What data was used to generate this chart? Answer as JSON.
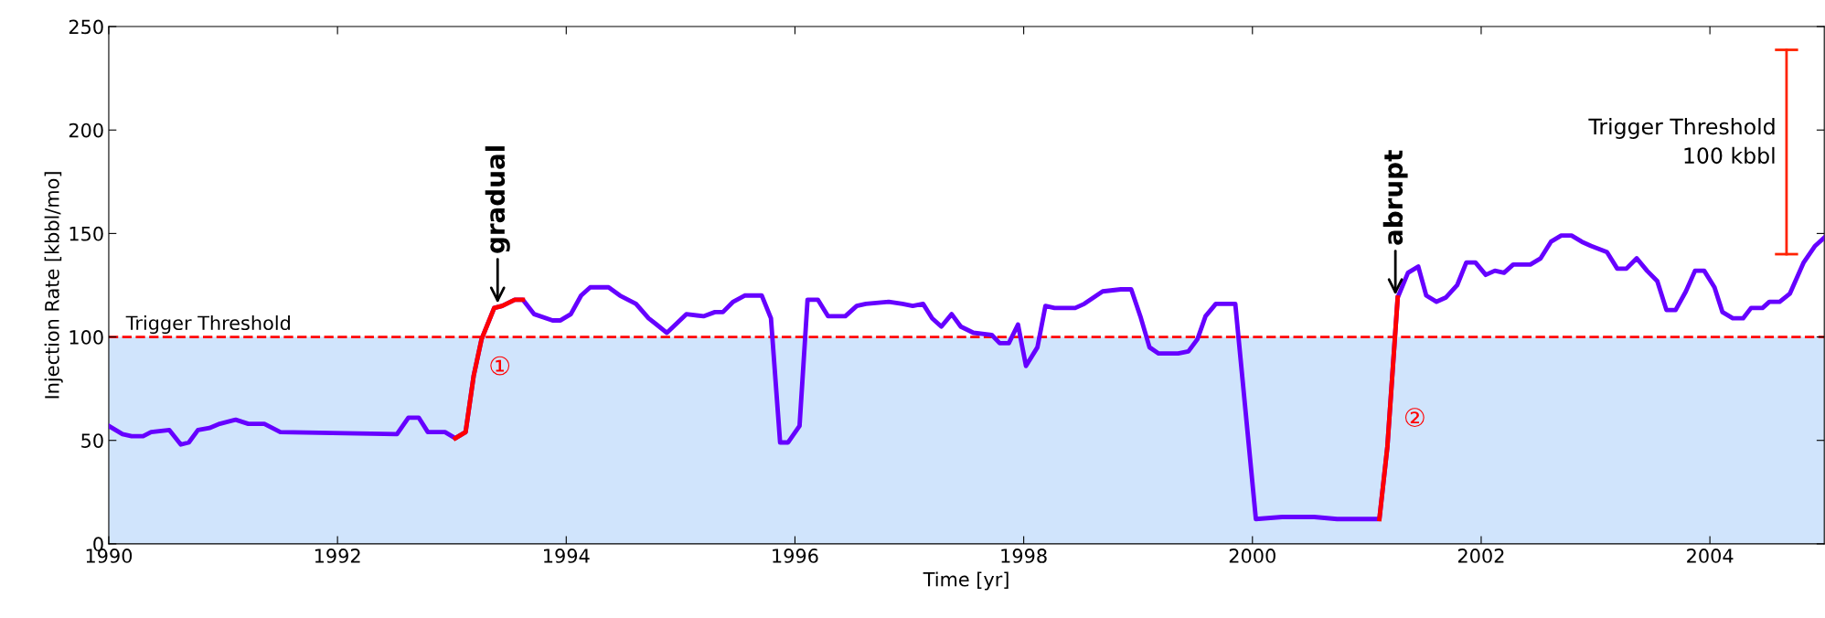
{
  "chart_data": {
    "type": "line",
    "xlabel": "Time [yr]",
    "ylabel": "Injection Rate [kbbl/mo]",
    "xlim": [
      1990,
      2005
    ],
    "ylim": [
      0,
      250
    ],
    "xticks": [
      1990,
      1992,
      1994,
      1996,
      1998,
      2000,
      2002,
      2004
    ],
    "yticks": [
      0,
      50,
      100,
      150,
      200,
      250
    ],
    "grid": false,
    "line_style": "solid",
    "marker": "none",
    "series": [
      {
        "color": "#6600ff",
        "x": [
          1990.0,
          1990.12,
          1990.2,
          1990.3,
          1990.37,
          1990.53,
          1990.63,
          1990.7,
          1990.78,
          1990.88,
          1990.97,
          1991.11,
          1991.22,
          1991.36,
          1991.5,
          1992.52,
          1992.62,
          1992.71,
          1992.79,
          1992.94,
          1993.03,
          1993.12,
          1993.19,
          1993.26,
          1993.37,
          1993.44,
          1993.55,
          1993.62,
          1993.72,
          1993.88,
          1993.95,
          1994.04,
          1994.13,
          1994.21,
          1994.37,
          1994.47,
          1994.61,
          1994.72,
          1994.79,
          1994.88,
          1995.05,
          1995.2,
          1995.3,
          1995.37,
          1995.46,
          1995.56,
          1995.71,
          1995.79,
          1995.87,
          1995.94,
          1996.04,
          1996.11,
          1996.2,
          1996.29,
          1996.44,
          1996.54,
          1996.62,
          1996.82,
          1996.94,
          1997.03,
          1997.12,
          1997.2,
          1997.28,
          1997.37,
          1997.45,
          1997.56,
          1997.72,
          1997.79,
          1997.87,
          1997.95,
          1998.02,
          1998.12,
          1998.19,
          1998.27,
          1998.45,
          1998.53,
          1998.69,
          1998.85,
          1998.94,
          1999.02,
          1999.1,
          1999.18,
          1999.35,
          1999.44,
          1999.52,
          1999.59,
          1999.68,
          1999.85,
          2000.03,
          2000.26,
          2000.54,
          2000.74,
          2001.11,
          2001.18,
          2001.27,
          2001.36,
          2001.45,
          2001.52,
          2001.61,
          2001.69,
          2001.79,
          2001.87,
          2001.95,
          2002.04,
          2002.12,
          2002.2,
          2002.28,
          2002.43,
          2002.52,
          2002.61,
          2002.7,
          2002.79,
          2002.88,
          2002.96,
          2003.1,
          2003.19,
          2003.27,
          2003.36,
          2003.45,
          2003.54,
          2003.62,
          2003.7,
          2003.79,
          2003.87,
          2003.95,
          2004.04,
          2004.11,
          2004.2,
          2004.29,
          2004.36,
          2004.46,
          2004.52,
          2004.61,
          2004.7,
          2004.82,
          2004.92,
          2005.0
        ],
        "values": [
          57,
          53,
          52,
          52,
          54,
          55,
          48,
          49,
          55,
          56,
          58,
          60,
          58,
          58,
          54,
          53,
          61,
          61,
          54,
          54,
          51,
          54,
          81,
          99,
          114,
          115,
          118,
          118,
          111,
          108,
          108,
          111,
          120,
          124,
          124,
          120,
          116,
          109,
          106,
          102,
          111,
          110,
          112,
          112,
          117,
          120,
          120,
          109,
          49,
          49,
          57,
          118,
          118,
          110,
          110,
          115,
          116,
          117,
          116,
          115,
          116,
          109,
          105,
          111,
          105,
          102,
          101,
          97,
          97,
          106,
          86,
          95,
          115,
          114,
          114,
          116,
          122,
          123,
          123,
          110,
          95,
          92,
          92,
          93,
          99,
          110,
          116,
          116,
          12,
          13,
          13,
          12,
          12,
          47,
          119,
          131,
          134,
          120,
          117,
          119,
          125,
          136,
          136,
          130,
          132,
          131,
          135,
          135,
          138,
          146,
          149,
          149,
          146,
          144,
          141,
          133,
          133,
          138,
          132,
          127,
          113,
          113,
          122,
          132,
          132,
          124,
          112,
          109,
          109,
          114,
          114,
          117,
          117,
          121,
          136,
          144,
          148
        ]
      },
      {
        "color": "#ff0000",
        "x": [
          1993.03,
          1993.12,
          1993.19,
          1993.26,
          1993.37,
          1993.44,
          1993.55,
          1993.62
        ],
        "values": [
          51,
          54,
          81,
          99,
          114,
          115,
          118,
          118
        ]
      },
      {
        "color": "#ff0000",
        "x": [
          2001.11,
          2001.18,
          2001.27
        ],
        "values": [
          12,
          47,
          119
        ]
      }
    ],
    "ref_lines": [
      {
        "axis": "y",
        "value": 100,
        "label": "Trigger Threshold",
        "color": "#ff0000",
        "line_style": "dashed"
      }
    ],
    "bands": [
      {
        "axis": "y",
        "from": 0,
        "to": 100,
        "color": "#d0e4fc"
      }
    ],
    "annotations": [
      {
        "text": "gradual",
        "x": 1993.4,
        "y": 115
      },
      {
        "text": "abrupt",
        "x": 2001.25,
        "y": 119
      },
      {
        "text": "①",
        "x": 1993.2,
        "y": 85
      },
      {
        "text": "②",
        "x": 2001.2,
        "y": 60
      },
      "Trigger Threshold\n100 kbbl"
    ]
  }
}
